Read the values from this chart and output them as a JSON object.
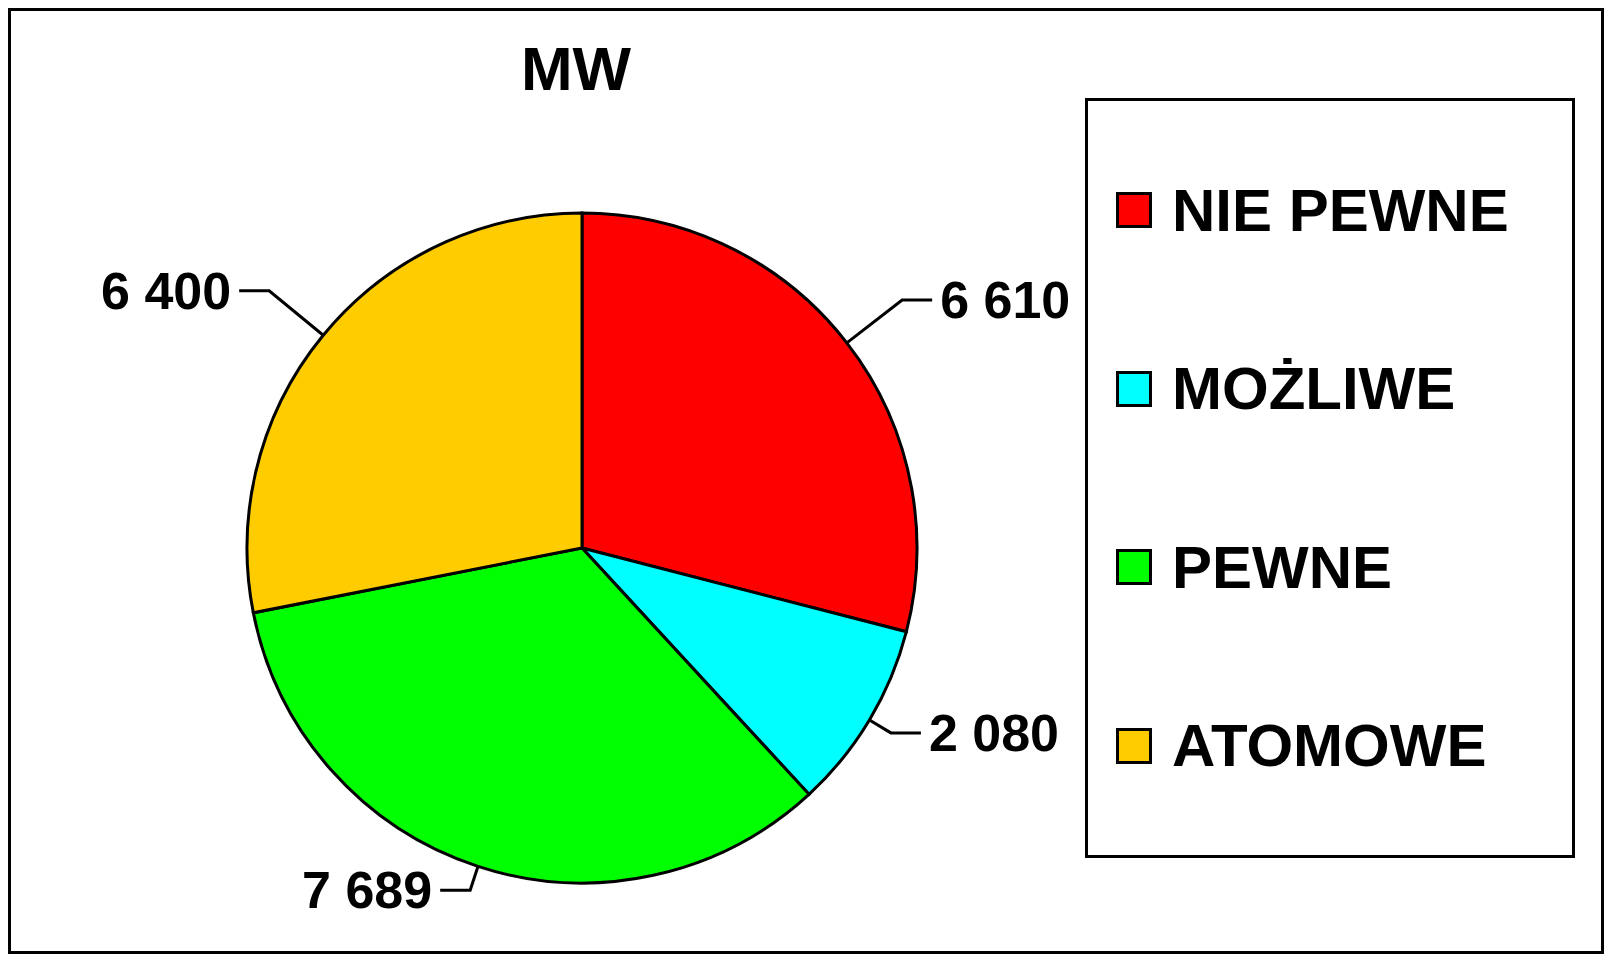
{
  "chart_data": {
    "type": "pie",
    "title": "MW",
    "categories": [
      "NIE PEWNE",
      "MOŻLIWE",
      "PEWNE",
      "ATOMOWE"
    ],
    "values": [
      6610,
      2080,
      7689,
      6400
    ],
    "colors": [
      "#ff0000",
      "#00ffff",
      "#00ff00",
      "#ffcc00"
    ],
    "value_labels": [
      "6 610",
      "2 080",
      "7 689",
      "6 400"
    ],
    "legend": "right"
  }
}
